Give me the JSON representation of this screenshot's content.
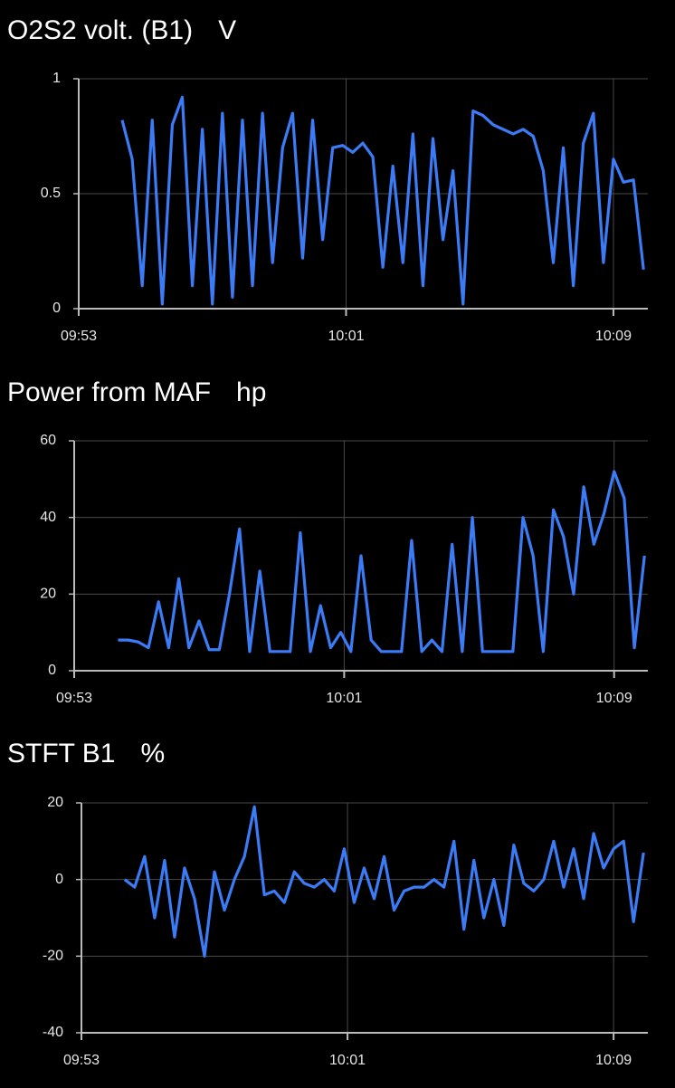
{
  "chart_data": [
    {
      "type": "line",
      "title": "O2S2 volt. (B1)",
      "unit": "V",
      "color": "#3b7cf6",
      "grid": true,
      "xlim": [
        593,
        610.03
      ],
      "xticks": [
        {
          "value": 593,
          "label": "09:53"
        },
        {
          "value": 601,
          "label": "10:01"
        },
        {
          "value": 609,
          "label": "10:09"
        }
      ],
      "ylim": [
        0,
        1
      ],
      "yticks": [
        0,
        0.5,
        1
      ],
      "x": [
        594.3,
        594.6,
        594.9,
        595.2,
        595.5,
        595.8,
        596.1,
        596.4,
        596.7,
        597.0,
        597.3,
        597.6,
        597.9,
        598.2,
        598.5,
        598.8,
        599.1,
        599.4,
        599.7,
        600.0,
        600.3,
        600.6,
        600.9,
        601.2,
        601.5,
        601.8,
        602.1,
        602.4,
        602.7,
        603.0,
        603.3,
        603.6,
        603.9,
        604.2,
        604.5,
        604.8,
        605.1,
        605.4,
        605.7,
        606.0,
        606.3,
        606.6,
        606.9,
        607.2,
        607.5,
        607.8,
        608.1,
        608.4,
        608.7,
        609.0,
        609.3,
        609.6,
        609.9
      ],
      "values": [
        0.82,
        0.65,
        0.1,
        0.82,
        0.02,
        0.8,
        0.92,
        0.1,
        0.78,
        0.02,
        0.85,
        0.05,
        0.82,
        0.1,
        0.85,
        0.2,
        0.7,
        0.85,
        0.22,
        0.82,
        0.3,
        0.7,
        0.71,
        0.68,
        0.72,
        0.66,
        0.18,
        0.62,
        0.2,
        0.76,
        0.1,
        0.74,
        0.3,
        0.6,
        0.02,
        0.86,
        0.84,
        0.8,
        0.78,
        0.76,
        0.78,
        0.75,
        0.6,
        0.2,
        0.7,
        0.1,
        0.72,
        0.85,
        0.2,
        0.65,
        0.55,
        0.56,
        0.17
      ]
    },
    {
      "type": "line",
      "title": "Power from MAF",
      "unit": "hp",
      "color": "#3b7cf6",
      "grid": true,
      "xlim": [
        593,
        610
      ],
      "xticks": [
        {
          "value": 593,
          "label": "09:53"
        },
        {
          "value": 601,
          "label": "10:01"
        },
        {
          "value": 609,
          "label": "10:09"
        }
      ],
      "ylim": [
        0,
        60
      ],
      "yticks": [
        0,
        20,
        40,
        60
      ],
      "x": [
        594.3,
        594.6,
        594.9,
        595.2,
        595.5,
        595.8,
        596.1,
        596.4,
        596.7,
        597.0,
        597.3,
        597.6,
        597.9,
        598.2,
        598.5,
        598.8,
        599.1,
        599.4,
        599.7,
        600.0,
        600.3,
        600.6,
        600.9,
        601.2,
        601.5,
        601.8,
        602.1,
        602.4,
        602.7,
        603.0,
        603.3,
        603.6,
        603.9,
        604.2,
        604.5,
        604.8,
        605.1,
        605.4,
        605.7,
        606.0,
        606.3,
        606.6,
        606.9,
        607.2,
        607.5,
        607.8,
        608.1,
        608.4,
        608.7,
        609.0,
        609.3,
        609.6,
        609.9
      ],
      "values": [
        8,
        8,
        7.5,
        6,
        18,
        6,
        24,
        6,
        13,
        5.5,
        5.5,
        20,
        37,
        5,
        26,
        5,
        5,
        5,
        36,
        5,
        17,
        6,
        10,
        5,
        30,
        8,
        5,
        5,
        5,
        34,
        5,
        8,
        5,
        33,
        5,
        40,
        5,
        5,
        5,
        5,
        40,
        30,
        5,
        42,
        35,
        20,
        48,
        33,
        41,
        52,
        45,
        6,
        30
      ]
    },
    {
      "type": "line",
      "title": "STFT B1",
      "unit": "%",
      "color": "#3b7cf6",
      "grid": true,
      "xlim": [
        593,
        610.03
      ],
      "xticks": [
        {
          "value": 593,
          "label": "09:53"
        },
        {
          "value": 601,
          "label": "10:01"
        },
        {
          "value": 609,
          "label": "10:09"
        }
      ],
      "ylim": [
        -40,
        20
      ],
      "yticks": [
        -40,
        -20,
        0,
        20
      ],
      "x": [
        594.3,
        594.6,
        594.9,
        595.2,
        595.5,
        595.8,
        596.1,
        596.4,
        596.7,
        597.0,
        597.3,
        597.6,
        597.9,
        598.2,
        598.5,
        598.8,
        599.1,
        599.4,
        599.7,
        600.0,
        600.3,
        600.6,
        600.9,
        601.2,
        601.5,
        601.8,
        602.1,
        602.4,
        602.7,
        603.0,
        603.3,
        603.6,
        603.9,
        604.2,
        604.5,
        604.8,
        605.1,
        605.4,
        605.7,
        606.0,
        606.3,
        606.6,
        606.9,
        607.2,
        607.5,
        607.8,
        608.1,
        608.4,
        608.7,
        609.0,
        609.3,
        609.6,
        609.9
      ],
      "values": [
        0,
        -2,
        6,
        -10,
        5,
        -15,
        3,
        -5,
        -20,
        2,
        -8,
        0,
        6,
        19,
        -4,
        -3,
        -6,
        2,
        -1,
        -2,
        0,
        -3,
        8,
        -6,
        3,
        -5,
        6,
        -8,
        -3,
        -2,
        -2,
        0,
        -2,
        10,
        -13,
        5,
        -10,
        0,
        -12,
        9,
        -1,
        -3,
        0,
        10,
        -2,
        8,
        -5,
        12,
        3,
        8,
        10,
        -11,
        7
      ]
    }
  ]
}
